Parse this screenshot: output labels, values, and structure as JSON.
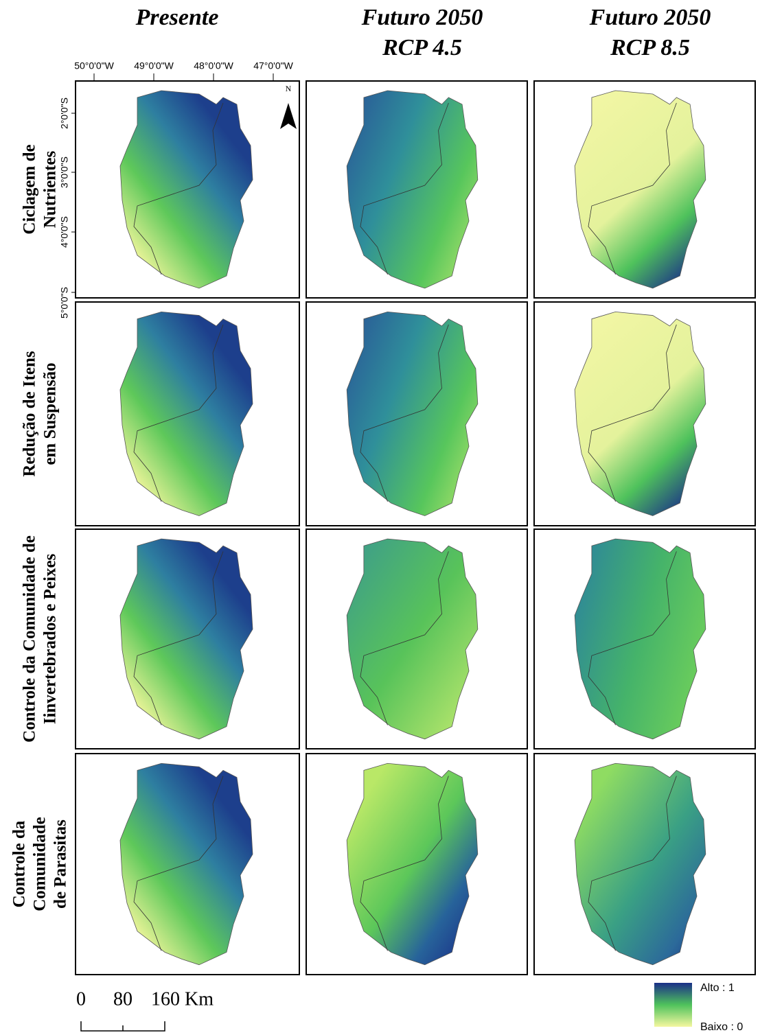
{
  "columns": [
    {
      "lines": [
        "Presente"
      ]
    },
    {
      "lines": [
        "Futuro 2050",
        "RCP 4.5"
      ]
    },
    {
      "lines": [
        "Futuro 2050",
        "RCP 8.5"
      ]
    }
  ],
  "rows": [
    {
      "lines": [
        "Ciclagem de",
        "Nutrientes"
      ]
    },
    {
      "lines": [
        "Redução de Itens",
        "em Suspensão"
      ]
    },
    {
      "lines": [
        "Controle da Comunidade de",
        "Iinvertebrados e Peixes"
      ]
    },
    {
      "lines": [
        "Controle da",
        "Comunidade",
        "de Parasitas"
      ]
    }
  ],
  "longitude_labels": [
    "50°0'0\"W",
    "49°0'0\"W",
    "48°0'0\"W",
    "47°0'0\"W"
  ],
  "latitude_labels": [
    "2°0'0\"S",
    "3°0'0\"S",
    "4°0'0\"S",
    "5°0'0\"S"
  ],
  "north_label": "N",
  "scale_bar": {
    "labels": [
      "0",
      "80",
      "160 Km"
    ]
  },
  "legend": {
    "high": "Alto : 1",
    "low": "Baixo : 0"
  }
}
